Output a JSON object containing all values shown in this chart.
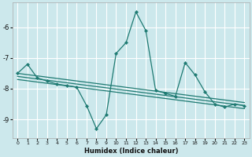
{
  "xlabel": "Humidex (Indice chaleur)",
  "bg_color": "#cce8ec",
  "grid_color": "#ffffff",
  "line_color": "#1e7a72",
  "xlim": [
    -0.5,
    23.5
  ],
  "ylim": [
    -9.6,
    -5.2
  ],
  "yticks": [
    -9,
    -8,
    -7,
    -6
  ],
  "xticks": [
    0,
    1,
    2,
    3,
    4,
    5,
    6,
    7,
    8,
    9,
    10,
    11,
    12,
    13,
    14,
    15,
    16,
    17,
    18,
    19,
    20,
    21,
    22,
    23
  ],
  "main_series": {
    "x": [
      0,
      1,
      2,
      3,
      4,
      5,
      6,
      7,
      8,
      9,
      10,
      11,
      12,
      13,
      14,
      15,
      16,
      17,
      18,
      19,
      20,
      21,
      22,
      23
    ],
    "y": [
      -7.5,
      -7.2,
      -7.65,
      -7.75,
      -7.85,
      -7.9,
      -7.95,
      -8.55,
      -9.3,
      -8.85,
      -6.85,
      -6.5,
      -5.5,
      -6.1,
      -8.05,
      -8.15,
      -8.25,
      -7.15,
      -7.55,
      -8.1,
      -8.5,
      -8.6,
      -8.5,
      -8.55
    ]
  },
  "trend_lines": [
    {
      "x": [
        0,
        23
      ],
      "y": [
        -7.5,
        -8.45
      ]
    },
    {
      "x": [
        0,
        23
      ],
      "y": [
        -7.6,
        -8.55
      ]
    },
    {
      "x": [
        0,
        23
      ],
      "y": [
        -7.7,
        -8.65
      ]
    }
  ]
}
